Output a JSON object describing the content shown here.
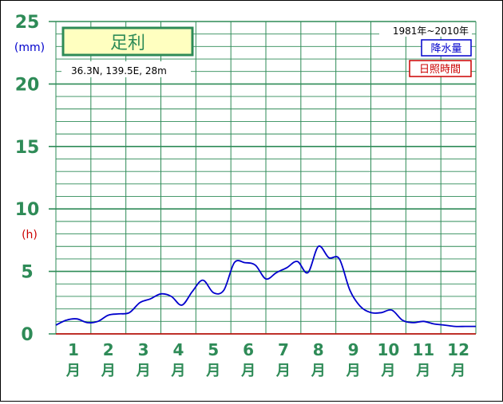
{
  "station": {
    "name": "足利",
    "coords": "36.3N,  139.5E,  28m"
  },
  "legend": {
    "period": "1981年~2010年",
    "precip_label": "降水量",
    "sunshine_label": "日照時間"
  },
  "colors": {
    "grid": "#2e8b57",
    "precip": "#0000cc",
    "sunshine": "#cc0000",
    "title_bg": "#ffffc0",
    "axis_text": "#2e8b57"
  },
  "chart_data": {
    "type": "line",
    "title": "足利",
    "y_units": [
      "(mm)",
      "(h)"
    ],
    "ylim": [
      0,
      25
    ],
    "yticks": [
      "0",
      "5",
      "10",
      "15",
      "20",
      "25"
    ],
    "months": [
      "1",
      "2",
      "3",
      "4",
      "5",
      "6",
      "7",
      "8",
      "9",
      "10",
      "11",
      "12"
    ],
    "month_suffix": "月",
    "grid": true,
    "series": [
      {
        "name": "降水量",
        "x": [
          0,
          0.3,
          0.6,
          0.9,
          1.2,
          1.5,
          1.8,
          2.1,
          2.4,
          2.7,
          3.0,
          3.3,
          3.6,
          3.9,
          4.2,
          4.5,
          4.8,
          5.1,
          5.4,
          5.7,
          6.0,
          6.3,
          6.6,
          6.9,
          7.2,
          7.5,
          7.8,
          8.1,
          8.4,
          8.7,
          9.0,
          9.3,
          9.6,
          9.9,
          10.2,
          10.5,
          10.8,
          11.1,
          11.4,
          11.7,
          12.0
        ],
        "values": [
          0.7,
          1.1,
          1.2,
          0.9,
          1.0,
          1.5,
          1.6,
          1.7,
          2.5,
          2.8,
          3.2,
          3.0,
          2.3,
          3.4,
          4.3,
          3.3,
          3.5,
          5.7,
          5.7,
          5.5,
          4.4,
          4.9,
          5.3,
          5.8,
          4.9,
          7.0,
          6.1,
          6.0,
          3.5,
          2.2,
          1.7,
          1.7,
          1.9,
          1.1,
          0.9,
          1.0,
          0.8,
          0.7,
          0.6,
          0.6,
          0.6
        ]
      },
      {
        "name": "日照時間",
        "x": [
          0,
          12
        ],
        "values": [
          0,
          0
        ]
      }
    ]
  }
}
